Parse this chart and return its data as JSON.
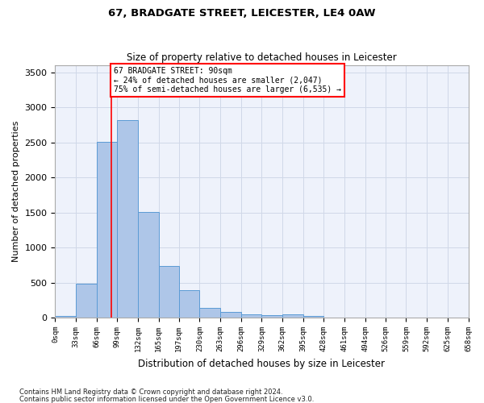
{
  "title1": "67, BRADGATE STREET, LEICESTER, LE4 0AW",
  "title2": "Size of property relative to detached houses in Leicester",
  "xlabel": "Distribution of detached houses by size in Leicester",
  "ylabel": "Number of detached properties",
  "footnote1": "Contains HM Land Registry data © Crown copyright and database right 2024.",
  "footnote2": "Contains public sector information licensed under the Open Government Licence v3.0.",
  "bar_left_edges": [
    0,
    33,
    66,
    99,
    132,
    165,
    197,
    230,
    263,
    296,
    329,
    362,
    395,
    428,
    461,
    494,
    526,
    559,
    592,
    625
  ],
  "bar_heights": [
    30,
    480,
    2510,
    2820,
    1510,
    740,
    390,
    145,
    80,
    50,
    35,
    50,
    25,
    0,
    0,
    0,
    0,
    0,
    0,
    0
  ],
  "bin_width": 33,
  "bar_color": "#aec6e8",
  "bar_edge_color": "#5b9bd5",
  "tick_labels": [
    "0sqm",
    "33sqm",
    "66sqm",
    "99sqm",
    "132sqm",
    "165sqm",
    "197sqm",
    "230sqm",
    "263sqm",
    "296sqm",
    "329sqm",
    "362sqm",
    "395sqm",
    "428sqm",
    "461sqm",
    "494sqm",
    "526sqm",
    "559sqm",
    "592sqm",
    "625sqm",
    "658sqm"
  ],
  "ylim": [
    0,
    3600
  ],
  "yticks": [
    0,
    500,
    1000,
    1500,
    2000,
    2500,
    3000,
    3500
  ],
  "red_line_x": 90,
  "annotation_title": "67 BRADGATE STREET: 90sqm",
  "annotation_line1": "← 24% of detached houses are smaller (2,047)",
  "annotation_line2": "75% of semi-detached houses are larger (6,535) →",
  "grid_color": "#d0d8e8",
  "bg_color": "#eef2fb",
  "xlim_max": 658
}
